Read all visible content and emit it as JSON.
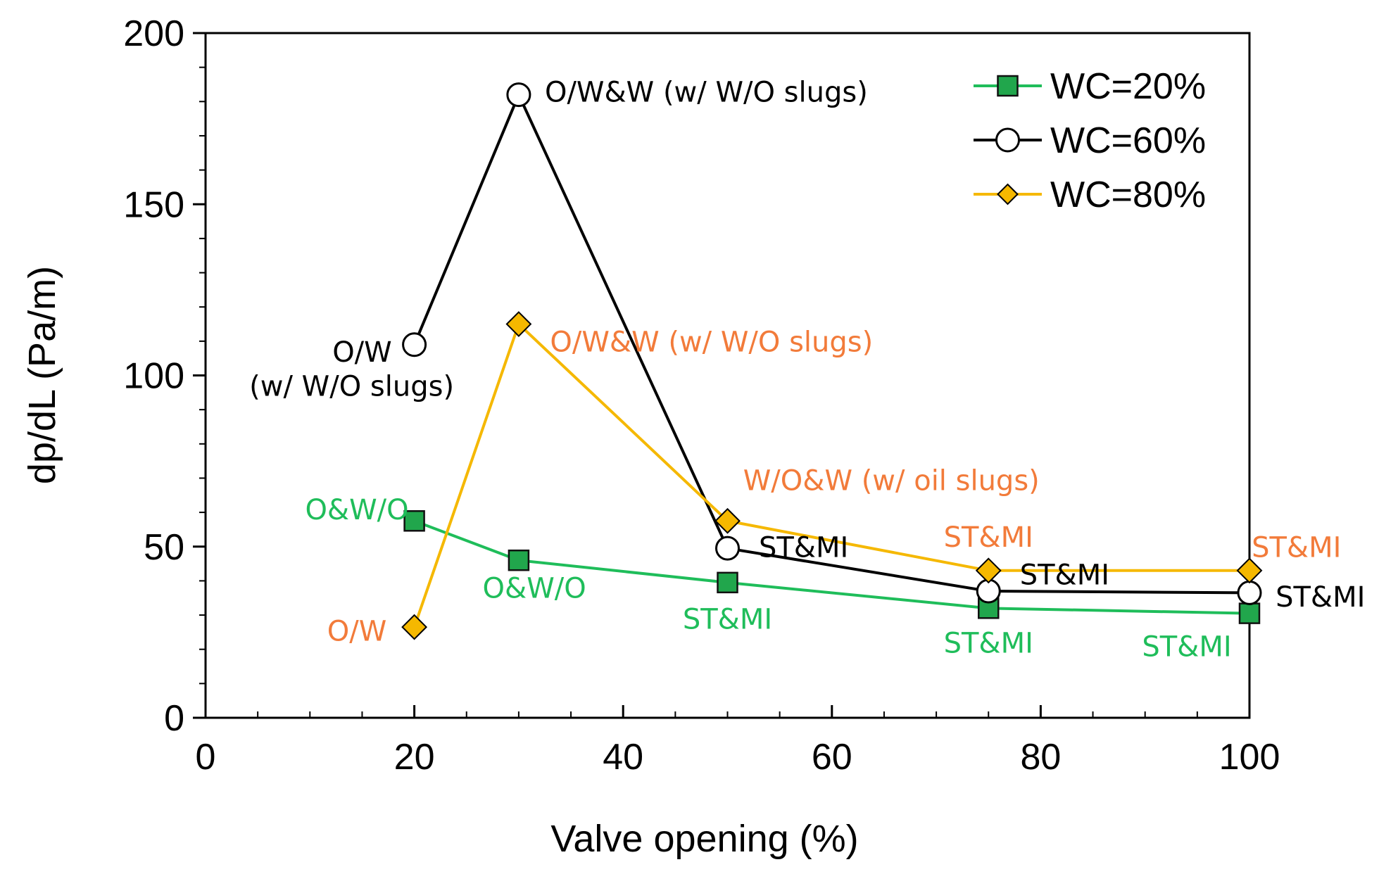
{
  "chart_data": {
    "type": "line",
    "xlabel": "Valve opening (%)",
    "ylabel": "dp/dL (Pa/m)",
    "xlim": [
      0,
      100
    ],
    "ylim": [
      0,
      200
    ],
    "xticks": [
      0,
      20,
      40,
      60,
      80,
      100
    ],
    "yticks": [
      0,
      50,
      100,
      150,
      200
    ],
    "x_minor_step": 5,
    "y_minor_step": 10,
    "grid": false,
    "legend_position": "top-right",
    "series": [
      {
        "name": "WC=20%",
        "marker": "square",
        "color": "#1fbd5a",
        "marker_fill": "#21a64c",
        "x": [
          20,
          30,
          50,
          75,
          100
        ],
        "y": [
          57.5,
          46,
          39.5,
          32,
          30.5
        ]
      },
      {
        "name": "WC=60%",
        "marker": "circle",
        "color": "#000000",
        "marker_fill": "#ffffff",
        "x": [
          20,
          30,
          50,
          75,
          100
        ],
        "y": [
          109,
          182,
          49.5,
          37,
          36.5
        ]
      },
      {
        "name": "WC=80%",
        "marker": "diamond",
        "color": "#f5b800",
        "marker_fill": "#f5b800",
        "x": [
          20,
          30,
          50,
          75,
          100
        ],
        "y": [
          26.5,
          115,
          57.5,
          43,
          43
        ]
      }
    ],
    "annotations": [
      {
        "text": "O&W/O",
        "series": "WC=20%",
        "color": "#1fbd5a",
        "x": 14.5,
        "y": 58,
        "anchor": "middle"
      },
      {
        "text": "O&W/O",
        "series": "WC=20%",
        "color": "#1fbd5a",
        "x": 31.5,
        "y": 35,
        "anchor": "middle"
      },
      {
        "text": "ST&MI",
        "series": "WC=20%",
        "color": "#1fbd5a",
        "x": 50,
        "y": 26,
        "anchor": "middle"
      },
      {
        "text": "ST&MI",
        "series": "WC=20%",
        "color": "#1fbd5a",
        "x": 75,
        "y": 19,
        "anchor": "middle"
      },
      {
        "text": "ST&MI",
        "series": "WC=20%",
        "color": "#1fbd5a",
        "x": 94,
        "y": 18,
        "anchor": "middle"
      },
      {
        "text": "O/W",
        "series": "WC=60%",
        "color": "#000000",
        "x": 15,
        "y": 104,
        "anchor": "middle"
      },
      {
        "text": "(w/ W/O slugs)",
        "series": "WC=60%",
        "color": "#000000",
        "x": 14,
        "y": 94,
        "anchor": "middle"
      },
      {
        "text": "O/W&W (w/ W/O slugs)",
        "series": "WC=60%",
        "color": "#000000",
        "x": 32.5,
        "y": 180,
        "anchor": "start"
      },
      {
        "text": "ST&MI",
        "series": "WC=60%",
        "color": "#000000",
        "x": 53,
        "y": 47,
        "anchor": "start"
      },
      {
        "text": "ST&MI",
        "series": "WC=60%",
        "color": "#000000",
        "x": 78,
        "y": 39,
        "anchor": "start"
      },
      {
        "text": "ST&MI",
        "series": "WC=60%",
        "color": "#000000",
        "x": 102.5,
        "y": 32.5,
        "anchor": "start"
      },
      {
        "text": "O/W",
        "series": "WC=80%",
        "color": "#f27b3a",
        "x": 14.5,
        "y": 22.5,
        "anchor": "middle"
      },
      {
        "text": "O/W&W (w/ W/O slugs)",
        "series": "WC=80%",
        "color": "#f27b3a",
        "x": 33,
        "y": 107,
        "anchor": "start"
      },
      {
        "text": "W/O&W (w/ oil slugs)",
        "series": "WC=80%",
        "color": "#f27b3a",
        "x": 51.5,
        "y": 66.5,
        "anchor": "start"
      },
      {
        "text": "ST&MI",
        "series": "WC=80%",
        "color": "#f27b3a",
        "x": 75,
        "y": 50,
        "anchor": "middle"
      },
      {
        "text": "ST&MI",
        "series": "WC=80%",
        "color": "#f27b3a",
        "x": 104.5,
        "y": 47,
        "anchor": "middle"
      }
    ]
  }
}
